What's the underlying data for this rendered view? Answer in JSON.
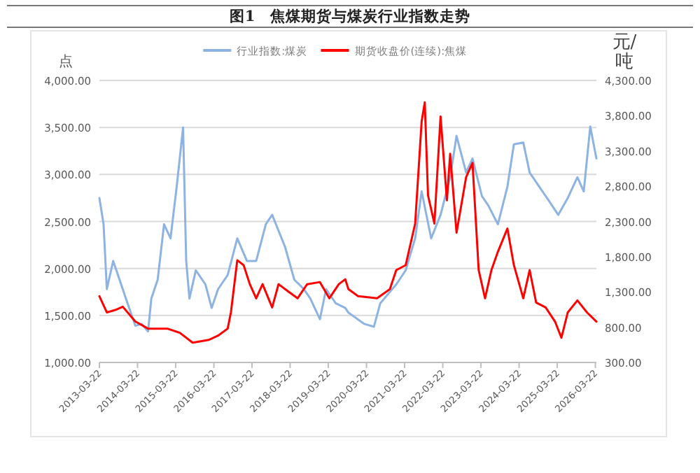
{
  "chart_data": {
    "type": "line",
    "title": "图1　焦煤期货与煤炭行业指数走势",
    "ylabel": "点",
    "y2label": "元/吨",
    "grid": "y",
    "legend": "top",
    "xlim": [
      "2013-03-22",
      "2026-04-01"
    ],
    "xticks": [
      "2013-03-22",
      "2014-03-22",
      "2015-03-22",
      "2016-03-22",
      "2017-03-22",
      "2018-03-22",
      "2019-03-22",
      "2020-03-22",
      "2021-03-22",
      "2022-03-22",
      "2023-03-22",
      "2024-03-22",
      "2025-03-22",
      "2026-03-22"
    ],
    "ylim": [
      1000,
      4000
    ],
    "yticks": [
      {
        "value": 1000,
        "label": "1,000.00"
      },
      {
        "value": 1500,
        "label": "1,500.00"
      },
      {
        "value": 2000,
        "label": "2,000.00"
      },
      {
        "value": 2500,
        "label": "2,500.00"
      },
      {
        "value": 3000,
        "label": "3,000.00"
      },
      {
        "value": 3500,
        "label": "3,500.00"
      },
      {
        "value": 4000,
        "label": "4,000.00"
      }
    ],
    "y2lim": [
      300,
      4300
    ],
    "y2ticks": [
      {
        "value": 300,
        "label": "300.00"
      },
      {
        "value": 800,
        "label": "800.00"
      },
      {
        "value": 1300,
        "label": "1,300.00"
      },
      {
        "value": 1800,
        "label": "1,800.00"
      },
      {
        "value": 2300,
        "label": "2,300.00"
      },
      {
        "value": 2800,
        "label": "2,800.00"
      },
      {
        "value": 3300,
        "label": "3,300.00"
      },
      {
        "value": 3800,
        "label": "3,800.00"
      },
      {
        "value": 4300,
        "label": "4,300.00"
      }
    ],
    "series": [
      {
        "name": "行业指数:煤炭",
        "color": "#8db3e2",
        "x": [
          "2013-03-22",
          "2013-05",
          "2013-06",
          "2013-08",
          "2013-10",
          "2013-12",
          "2014-03",
          "2014-05",
          "2014-07",
          "2014-08",
          "2014-10",
          "2014-12",
          "2015-02",
          "2015-04",
          "2015-06",
          "2015-07",
          "2015-08",
          "2015-10",
          "2016-01",
          "2016-03",
          "2016-05",
          "2016-08",
          "2016-11",
          "2017-02",
          "2017-05",
          "2017-08",
          "2017-10",
          "2018-02",
          "2018-05",
          "2018-08",
          "2018-10",
          "2019-01",
          "2019-03",
          "2019-06",
          "2019-09",
          "2019-10",
          "2020-03",
          "2020-06",
          "2020-08",
          "2021-01",
          "2021-04",
          "2021-07",
          "2021-09",
          "2021-12",
          "2022-03",
          "2022-06",
          "2022-08",
          "2022-11",
          "2023-01",
          "2023-04",
          "2023-06",
          "2023-09",
          "2023-12",
          "2024-02",
          "2024-05",
          "2024-07",
          "2024-10",
          "2025-01",
          "2025-04",
          "2025-07",
          "2025-10",
          "2025-12",
          "2026-02",
          "2026-04"
        ],
        "values": [
          2750,
          2470,
          1780,
          2080,
          1880,
          1680,
          1390,
          1410,
          1330,
          1680,
          1880,
          2470,
          2320,
          2870,
          3500,
          2080,
          1680,
          1980,
          1830,
          1580,
          1780,
          1930,
          2320,
          2080,
          2080,
          2470,
          2570,
          2230,
          1880,
          1780,
          1680,
          1460,
          1780,
          1630,
          1580,
          1530,
          1410,
          1380,
          1630,
          1830,
          1980,
          2320,
          2820,
          2320,
          2570,
          2970,
          3410,
          3020,
          3170,
          2770,
          2670,
          2470,
          2870,
          3320,
          3340,
          3020,
          2870,
          2720,
          2570,
          2750,
          2970,
          2820,
          3510,
          3170
        ]
      },
      {
        "name": "期货收盘价(连续):焦煤",
        "color": "#ff0000",
        "axis": "y2",
        "x": [
          "2013-03-22",
          "2013-06",
          "2013-09",
          "2013-11",
          "2014-03",
          "2014-07",
          "2015-01",
          "2015-05",
          "2015-09",
          "2016-02",
          "2016-05",
          "2016-08",
          "2016-09",
          "2016-11",
          "2017-01",
          "2017-03",
          "2017-05",
          "2017-07",
          "2017-10",
          "2017-12",
          "2018-03",
          "2018-06",
          "2018-09",
          "2019-01",
          "2019-04",
          "2019-07",
          "2019-09",
          "2019-10",
          "2020-01",
          "2020-07",
          "2020-11",
          "2021-01",
          "2021-04",
          "2021-07",
          "2021-09",
          "2021-10",
          "2021-11",
          "2022-01",
          "2022-03",
          "2022-05",
          "2022-06",
          "2022-08",
          "2022-11",
          "2023-01",
          "2023-03",
          "2023-05",
          "2023-07",
          "2023-09",
          "2023-12",
          "2024-02",
          "2024-05",
          "2024-07",
          "2024-09",
          "2024-12",
          "2025-03",
          "2025-05",
          "2025-07",
          "2025-10",
          "2026-01",
          "2026-04"
        ],
        "values": [
          1240,
          1010,
          1050,
          1090,
          880,
          780,
          780,
          720,
          580,
          620,
          680,
          780,
          1010,
          1750,
          1680,
          1410,
          1210,
          1410,
          1080,
          1410,
          1310,
          1210,
          1410,
          1440,
          1210,
          1410,
          1480,
          1340,
          1240,
          1210,
          1340,
          1610,
          1680,
          2270,
          3720,
          3990,
          2670,
          2270,
          3790,
          2600,
          3260,
          2140,
          2930,
          3130,
          1610,
          1210,
          1610,
          1870,
          2200,
          1680,
          1210,
          1610,
          1150,
          1080,
          880,
          650,
          1010,
          1180,
          1010,
          880
        ]
      }
    ]
  }
}
